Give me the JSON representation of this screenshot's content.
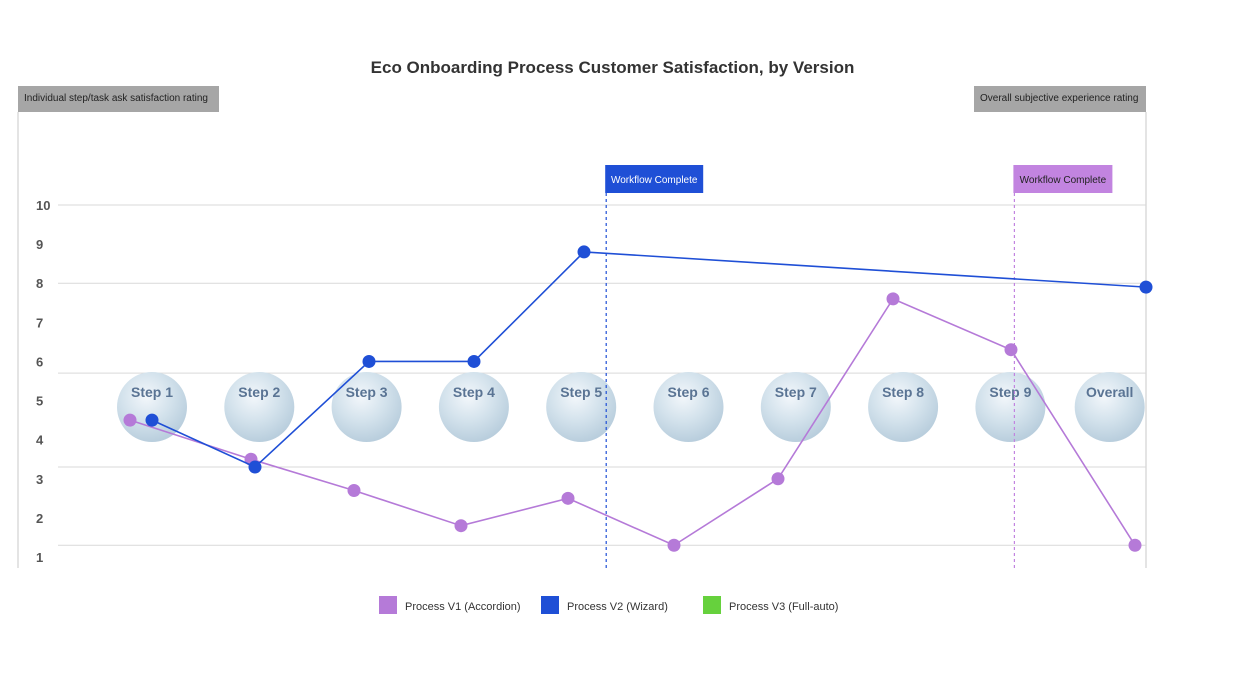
{
  "chart_data": {
    "type": "line",
    "title": "Eco Onboarding Process Customer Satisfaction, by Version",
    "left_tag": "Individual step/task ask satisfaction rating",
    "right_tag": "Overall subjective experience rating",
    "y_ticks": [
      "1",
      "2",
      "3",
      "4",
      "5",
      "6",
      "7",
      "8",
      "9",
      "10"
    ],
    "categories": [
      "Step 1",
      "Step 2",
      "Step 3",
      "Step 4",
      "Step 5",
      "Step 6",
      "Step 7",
      "Step 8",
      "Step 9",
      "Overall"
    ],
    "ylim": [
      1,
      10
    ],
    "grid": true,
    "legend_position": "bottom",
    "series": [
      {
        "name": "Process V1 (Accordion)",
        "color": "#b57ad8",
        "values": [
          4.5,
          3.5,
          2.7,
          1.8,
          2.5,
          1.3,
          3.0,
          7.6,
          6.3,
          1.3
        ]
      },
      {
        "name": "Process V2 (Wizard)",
        "color": "#1f4fd6",
        "values": [
          4.5,
          3.3,
          6.0,
          6.0,
          8.8,
          null,
          null,
          null,
          null,
          7.9
        ]
      },
      {
        "name": "Process V3 (Full-auto)",
        "color": "#66d13d",
        "values": [
          null,
          null,
          null,
          null,
          null,
          null,
          null,
          null,
          null,
          null
        ]
      }
    ],
    "annotations": [
      {
        "text": "Workflow Complete",
        "after": "Step 5",
        "color": "#1f4fd6",
        "text_color": "#ffffff",
        "series": "Process V2 (Wizard)"
      },
      {
        "text": "Workflow Complete",
        "after": "Step 9",
        "color": "#c284e0",
        "text_color": "#222222",
        "series": "Process V1 (Accordion)"
      }
    ]
  }
}
